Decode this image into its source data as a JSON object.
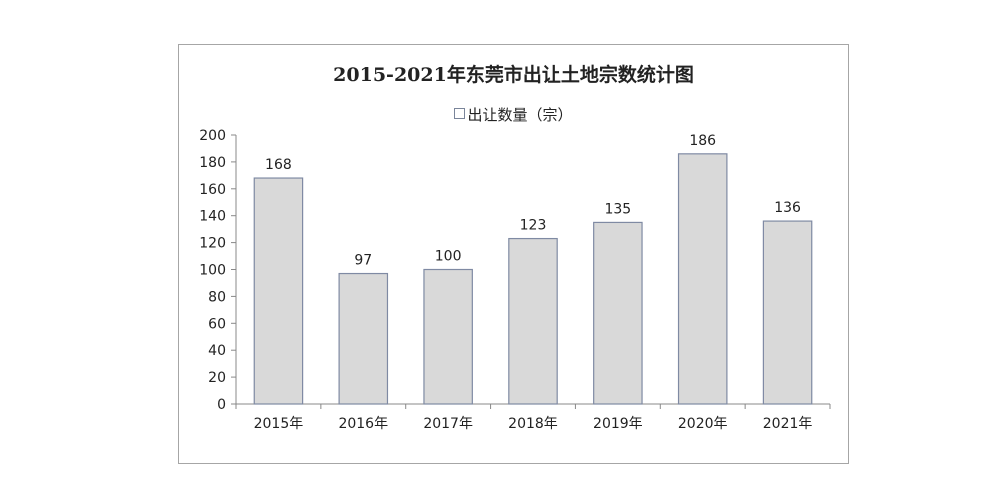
{
  "chart_data": {
    "type": "bar",
    "title": "2015-2021年东莞市出让土地宗数统计图",
    "categories": [
      "2015年",
      "2016年",
      "2017年",
      "2018年",
      "2019年",
      "2020年",
      "2021年"
    ],
    "series": [
      {
        "name": "出让数量（宗）",
        "values": [
          168,
          97,
          100,
          123,
          135,
          186,
          136
        ]
      }
    ],
    "y_ticks": [
      "0",
      "20",
      "40",
      "60",
      "80",
      "100",
      "120",
      "140",
      "160",
      "180",
      "200"
    ],
    "ylim": [
      0,
      200
    ],
    "legend_position": "top-center",
    "grid": false,
    "bar_color": "#d9d9d9",
    "bar_edge_color": "#7f8aa3"
  }
}
